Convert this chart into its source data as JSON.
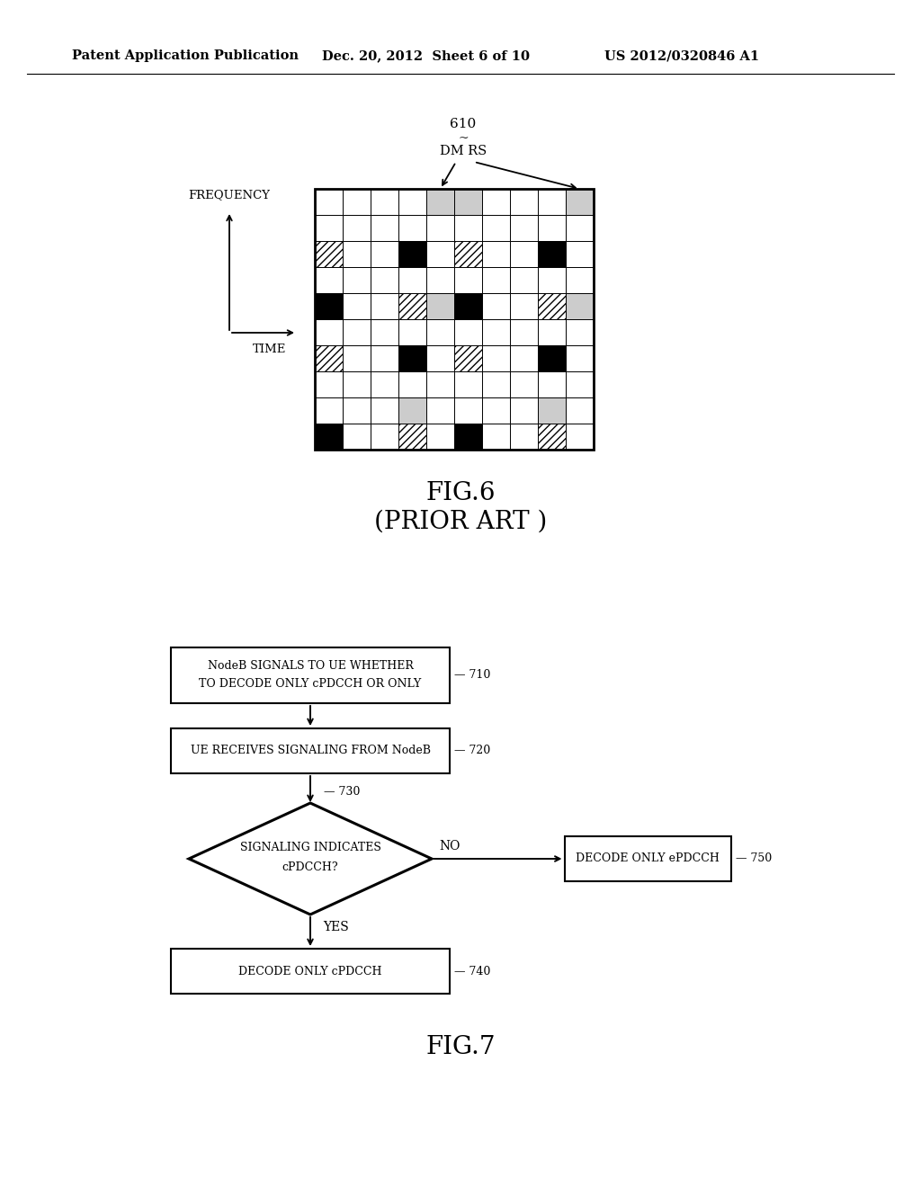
{
  "header_left": "Patent Application Publication",
  "header_mid": "Dec. 20, 2012  Sheet 6 of 10",
  "header_right": "US 2012/0320846 A1",
  "fig6_label": "FIG.6",
  "fig6_sub": "(PRIOR ART )",
  "fig7_label": "FIG.7",
  "grid_label": "610",
  "dm_rs_label": "DM RS",
  "freq_label": "FREQUENCY",
  "time_label": "TIME",
  "grid_rows": 10,
  "grid_cols": 10,
  "cell_types": [
    [
      "W",
      "W",
      "W",
      "W",
      "G",
      "G",
      "W",
      "W",
      "W",
      "G"
    ],
    [
      "W",
      "W",
      "W",
      "W",
      "W",
      "W",
      "W",
      "W",
      "W",
      "W"
    ],
    [
      "H",
      "W",
      "W",
      "B",
      "W",
      "H",
      "W",
      "W",
      "B",
      "W"
    ],
    [
      "W",
      "W",
      "W",
      "W",
      "W",
      "W",
      "W",
      "W",
      "W",
      "W"
    ],
    [
      "B",
      "W",
      "W",
      "H",
      "G",
      "B",
      "W",
      "W",
      "H",
      "G"
    ],
    [
      "W",
      "W",
      "W",
      "W",
      "W",
      "W",
      "W",
      "W",
      "W",
      "W"
    ],
    [
      "H",
      "W",
      "W",
      "B",
      "W",
      "H",
      "W",
      "W",
      "B",
      "W"
    ],
    [
      "W",
      "W",
      "W",
      "W",
      "W",
      "W",
      "W",
      "W",
      "W",
      "W"
    ],
    [
      "W",
      "W",
      "W",
      "G",
      "W",
      "W",
      "W",
      "W",
      "G",
      "W"
    ],
    [
      "B",
      "W",
      "W",
      "H",
      "W",
      "B",
      "W",
      "W",
      "H",
      "W"
    ]
  ],
  "box710_line1": "NodeB SIGNALS TO UE WHETHER",
  "box710_line2": "TO DECODE ONLY cPDCCH OR ONLY",
  "box710_label": "710",
  "box720_text": "UE RECEIVES SIGNALING FROM NodeB",
  "box720_label": "720",
  "diamond730_line1": "SIGNALING INDICATES",
  "diamond730_line2": "cPDCCH?",
  "diamond730_label": "730",
  "box740_text": "DECODE ONLY cPDCCH",
  "box740_label": "740",
  "box750_text": "DECODE ONLY ePDCCH",
  "box750_label": "750",
  "no_label": "NO",
  "yes_label": "YES"
}
